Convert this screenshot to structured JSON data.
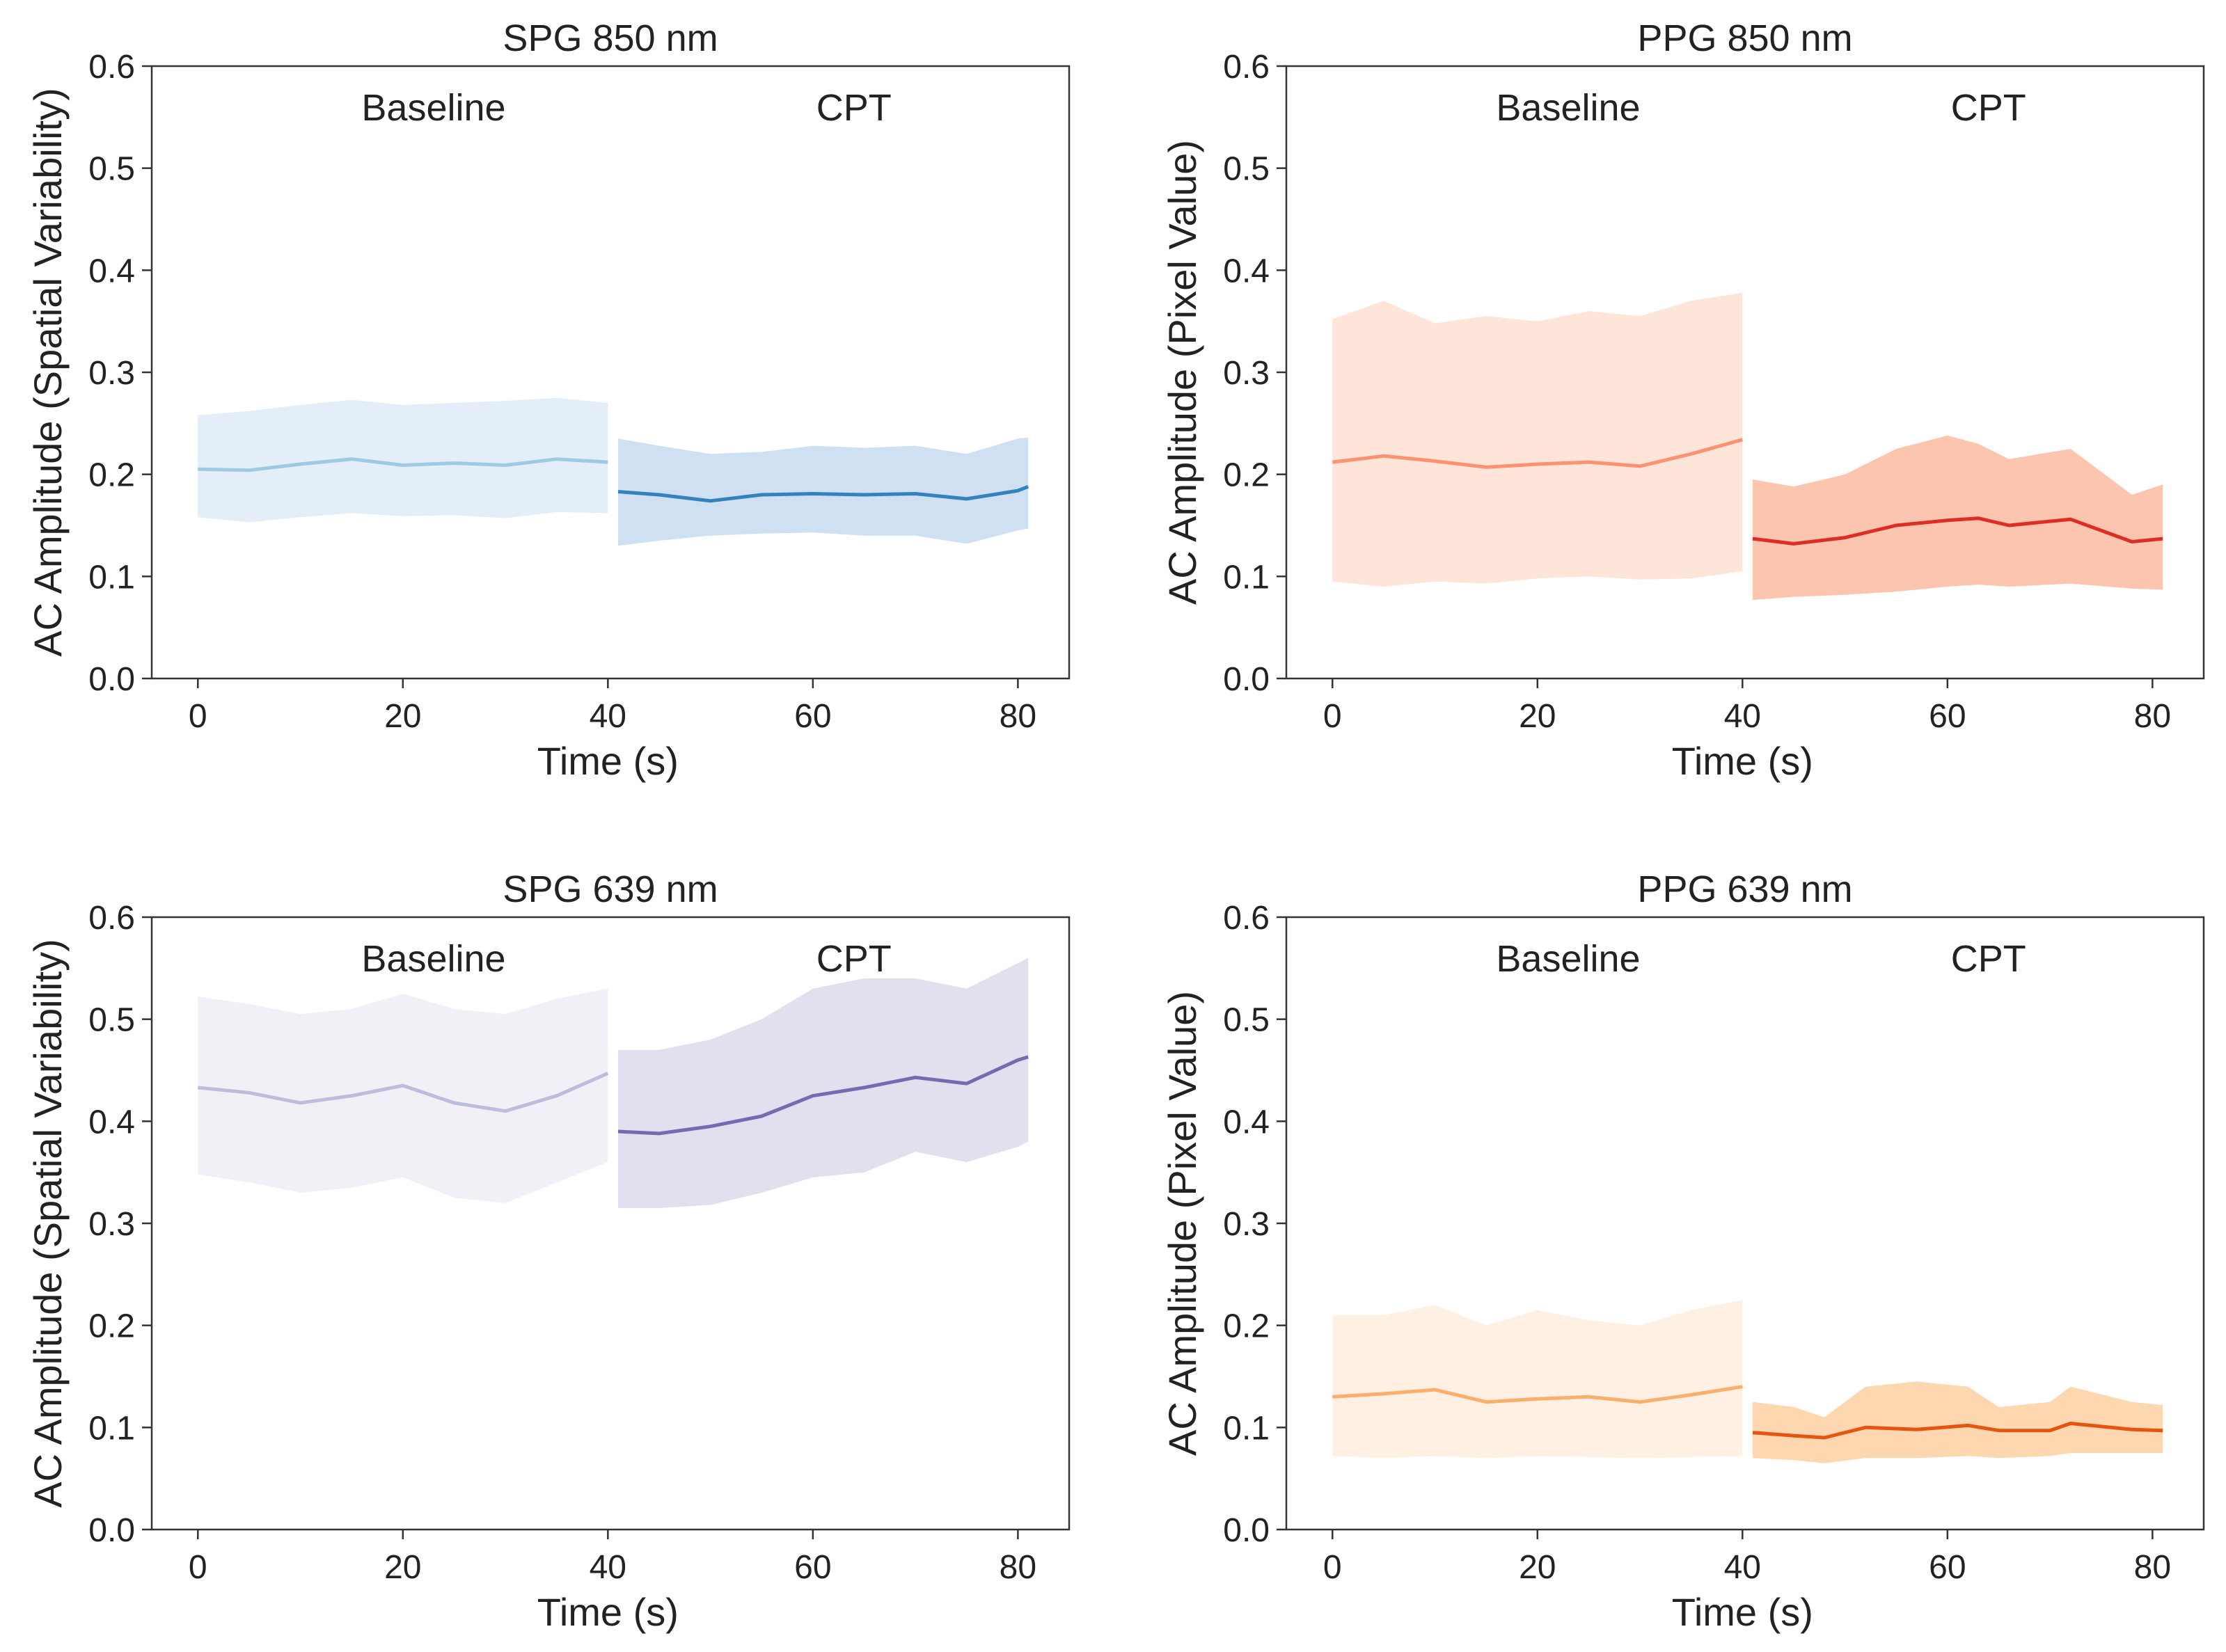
{
  "figure": {
    "panel_count": 4
  },
  "chart_data": [
    {
      "type": "line",
      "title": "SPG 850 nm",
      "xlabel": "Time (s)",
      "ylabel": "AC Amplitude (Spatial Variability)",
      "xlim": [
        -4.5,
        85
      ],
      "ylim": [
        0,
        0.6
      ],
      "xticks": [
        "0",
        "20",
        "40",
        "60",
        "80"
      ],
      "yticks": [
        "0.0",
        "0.1",
        "0.2",
        "0.3",
        "0.4",
        "0.5",
        "0.6"
      ],
      "annotations": [
        "Baseline",
        "CPT"
      ],
      "series": [
        {
          "name": "Baseline",
          "color": "#9ecae1",
          "fill_color": "#deebf7",
          "x": [
            0,
            5,
            10,
            15,
            20,
            25,
            30,
            35,
            40
          ],
          "mean": [
            0.205,
            0.204,
            0.21,
            0.215,
            0.209,
            0.211,
            0.209,
            0.215,
            0.212
          ],
          "upper": [
            0.258,
            0.262,
            0.268,
            0.273,
            0.268,
            0.27,
            0.272,
            0.275,
            0.27
          ],
          "lower": [
            0.158,
            0.153,
            0.158,
            0.162,
            0.159,
            0.16,
            0.157,
            0.163,
            0.162
          ]
        },
        {
          "name": "CPT",
          "color": "#3182bd",
          "fill_color": "#c6dbef",
          "x": [
            41,
            45,
            50,
            55,
            60,
            65,
            70,
            75,
            80,
            81
          ],
          "mean": [
            0.183,
            0.18,
            0.174,
            0.18,
            0.181,
            0.18,
            0.181,
            0.176,
            0.184,
            0.188
          ],
          "upper": [
            0.235,
            0.228,
            0.22,
            0.222,
            0.228,
            0.226,
            0.228,
            0.22,
            0.235,
            0.236
          ],
          "lower": [
            0.13,
            0.135,
            0.14,
            0.142,
            0.143,
            0.14,
            0.14,
            0.132,
            0.145,
            0.147
          ]
        }
      ]
    },
    {
      "type": "line",
      "title": "PPG 850 nm",
      "xlabel": "Time (s)",
      "ylabel": "AC Amplitude (Pixel Value)",
      "xlim": [
        -4.5,
        85
      ],
      "ylim": [
        0,
        0.6
      ],
      "xticks": [
        "0",
        "20",
        "40",
        "60",
        "80"
      ],
      "yticks": [
        "0.0",
        "0.1",
        "0.2",
        "0.3",
        "0.4",
        "0.5",
        "0.6"
      ],
      "annotations": [
        "Baseline",
        "CPT"
      ],
      "series": [
        {
          "name": "Baseline",
          "color": "#fc9272",
          "fill_color": "#fee0d2",
          "x": [
            0,
            5,
            10,
            15,
            20,
            25,
            30,
            35,
            40
          ],
          "mean": [
            0.212,
            0.218,
            0.213,
            0.207,
            0.21,
            0.212,
            0.208,
            0.22,
            0.234
          ],
          "upper": [
            0.352,
            0.37,
            0.348,
            0.355,
            0.35,
            0.36,
            0.355,
            0.37,
            0.378
          ],
          "lower": [
            0.095,
            0.09,
            0.095,
            0.093,
            0.098,
            0.1,
            0.097,
            0.098,
            0.105
          ]
        },
        {
          "name": "CPT",
          "color": "#de2d26",
          "fill_color": "#fcbba1",
          "x": [
            41,
            45,
            50,
            55,
            60,
            63,
            66,
            72,
            78,
            81
          ],
          "mean": [
            0.137,
            0.132,
            0.138,
            0.15,
            0.155,
            0.157,
            0.15,
            0.156,
            0.134,
            0.137
          ],
          "upper": [
            0.195,
            0.188,
            0.2,
            0.225,
            0.238,
            0.23,
            0.215,
            0.225,
            0.18,
            0.19
          ],
          "lower": [
            0.077,
            0.08,
            0.082,
            0.085,
            0.09,
            0.092,
            0.09,
            0.093,
            0.088,
            0.087
          ]
        }
      ]
    },
    {
      "type": "line",
      "title": "SPG 639 nm",
      "xlabel": "Time (s)",
      "ylabel": "AC Amplitude (Spatial Variability)",
      "xlim": [
        -4.5,
        85
      ],
      "ylim": [
        0,
        0.6
      ],
      "xticks": [
        "0",
        "20",
        "40",
        "60",
        "80"
      ],
      "yticks": [
        "0.0",
        "0.1",
        "0.2",
        "0.3",
        "0.4",
        "0.5",
        "0.6"
      ],
      "annotations": [
        "Baseline",
        "CPT"
      ],
      "series": [
        {
          "name": "Baseline",
          "color": "#bcbddc",
          "fill_color": "#efedf5",
          "x": [
            0,
            5,
            10,
            15,
            20,
            25,
            30,
            35,
            40
          ],
          "mean": [
            0.433,
            0.428,
            0.418,
            0.425,
            0.435,
            0.418,
            0.41,
            0.425,
            0.447
          ],
          "upper": [
            0.522,
            0.515,
            0.505,
            0.51,
            0.525,
            0.51,
            0.505,
            0.52,
            0.53
          ],
          "lower": [
            0.348,
            0.34,
            0.33,
            0.335,
            0.345,
            0.325,
            0.32,
            0.34,
            0.36
          ]
        },
        {
          "name": "CPT",
          "color": "#756bb1",
          "fill_color": "#dadaeb",
          "x": [
            41,
            45,
            50,
            55,
            60,
            65,
            70,
            75,
            80,
            81
          ],
          "mean": [
            0.39,
            0.388,
            0.395,
            0.405,
            0.425,
            0.433,
            0.443,
            0.437,
            0.46,
            0.463
          ],
          "upper": [
            0.47,
            0.47,
            0.48,
            0.5,
            0.53,
            0.54,
            0.54,
            0.53,
            0.555,
            0.56
          ],
          "lower": [
            0.315,
            0.315,
            0.318,
            0.33,
            0.345,
            0.35,
            0.37,
            0.36,
            0.375,
            0.38
          ]
        }
      ]
    },
    {
      "type": "line",
      "title": "PPG 639 nm",
      "xlabel": "Time (s)",
      "ylabel": "AC Amplitude (Pixel Value)",
      "xlim": [
        -4.5,
        85
      ],
      "ylim": [
        0,
        0.6
      ],
      "xticks": [
        "0",
        "20",
        "40",
        "60",
        "80"
      ],
      "yticks": [
        "0.0",
        "0.1",
        "0.2",
        "0.3",
        "0.4",
        "0.5",
        "0.6"
      ],
      "annotations": [
        "Baseline",
        "CPT"
      ],
      "series": [
        {
          "name": "Baseline",
          "color": "#fdae6b",
          "fill_color": "#feedde",
          "x": [
            0,
            5,
            10,
            15,
            20,
            25,
            30,
            35,
            40
          ],
          "mean": [
            0.13,
            0.133,
            0.137,
            0.125,
            0.128,
            0.13,
            0.125,
            0.132,
            0.14
          ],
          "upper": [
            0.21,
            0.21,
            0.22,
            0.2,
            0.215,
            0.205,
            0.2,
            0.215,
            0.225
          ],
          "lower": [
            0.072,
            0.07,
            0.072,
            0.07,
            0.072,
            0.071,
            0.07,
            0.071,
            0.072
          ]
        },
        {
          "name": "CPT",
          "color": "#e6550d",
          "fill_color": "#fdd0a2",
          "x": [
            41,
            45,
            48,
            52,
            57,
            62,
            65,
            70,
            72,
            78,
            81
          ],
          "mean": [
            0.095,
            0.092,
            0.09,
            0.1,
            0.098,
            0.102,
            0.097,
            0.097,
            0.104,
            0.098,
            0.097
          ],
          "upper": [
            0.125,
            0.12,
            0.11,
            0.14,
            0.145,
            0.14,
            0.12,
            0.125,
            0.14,
            0.125,
            0.122
          ],
          "lower": [
            0.07,
            0.068,
            0.065,
            0.07,
            0.07,
            0.072,
            0.07,
            0.072,
            0.075,
            0.075,
            0.075
          ]
        }
      ]
    }
  ]
}
